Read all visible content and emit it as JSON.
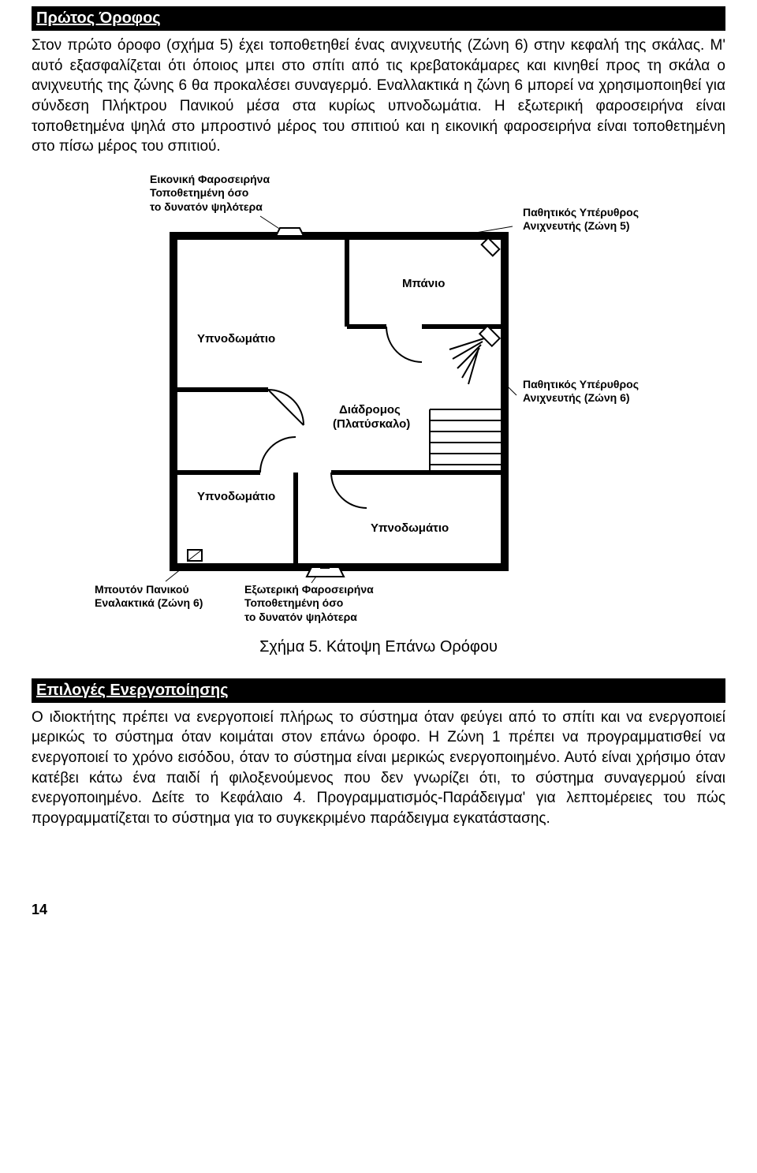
{
  "section1": {
    "title": "Πρώτος Όροφος",
    "body": "Στον πρώτο όροφο (σχήμα 5) έχει τοποθετηθεί ένας ανιχνευτής (Ζώνη 6) στην κεφαλή της σκάλας. Μ' αυτό εξασφαλίζεται ότι όποιος μπει στο σπίτι από τις κρεβατοκάμαρες και κινηθεί προς τη σκάλα ο ανιχνευτής της ζώνης 6 θα προκαλέσει συναγερμό. Εναλλακτικά η ζώνη 6 μπορεί να χρησιμοποιηθεί για σύνδεση Πλήκτρου Πανικού μέσα στα κυρίως υπνοδωμάτια. Η εξωτερική φαροσειρήνα είναι τοποθετημένα ψηλά στο μπροστινό μέρος του σπιτιού και η εικονική φαροσειρήνα είναι τοποθετημένη στο πίσω μέρος του σπιτιού."
  },
  "diagram": {
    "labels": {
      "fake_siren": "Εικονική Φαροσειρήνα\nΤοποθετημένη όσο\nτο δυνατόν ψηλότερα",
      "pir5": "Παθητικός Υπέρυθρος\nΑνιχνευτής (Ζώνη 5)",
      "pir6": "Παθητικός Υπέρυθρος\nΑνιχνευτής (Ζώνη 6)",
      "bath": "Μπάνιο",
      "bed1": "Υπνοδωμάτιο",
      "bed2": "Υπνοδωμάτιο",
      "bed3": "Υπνοδωμάτιο",
      "hall": "Διάδρομος\n(Πλατύσκαλο)",
      "panic": "Μπουτόν Πανικού\nΕναλακτικά (Ζώνη 6)",
      "ext_siren": "Εξωτερική Φαροσειρήνα\nΤοποθετημένη όσο\nτο δυνατόν ψηλότερα"
    },
    "colors": {
      "stroke": "#000000",
      "fill": "#ffffff",
      "wall_width": 10
    }
  },
  "caption": "Σχήμα 5. Κάτοψη Επάνω Ορόφου",
  "section2": {
    "title": "Επιλογές Ενεργοποίησης",
    "body": "Ο ιδιοκτήτης πρέπει να ενεργοποιεί πλήρως το σύστημα όταν φεύγει από το σπίτι και να ενεργοποιεί μερικώς το σύστημα όταν κοιμάται στον επάνω όροφο. Η Ζώνη 1 πρέπει να προγραμματισθεί να ενεργοποιεί το χρόνο εισόδου, όταν το σύστημα είναι μερικώς ενεργοποιημένο. Αυτό είναι χρήσιμο όταν κατέβει κάτω ένα παιδί ή φιλοξενούμενος που δεν γνωρίζει ότι, το σύστημα συναγερμού είναι ενεργοποιημένο. Δείτε το Κεφάλαιο 4. Προγραμματισμός-Παράδειγμα' για λεπτομέρειες του πώς προγραμματίζεται το σύστημα για το συγκεκριμένο παράδειγμα εγκατάστασης."
  },
  "page_number": "14"
}
